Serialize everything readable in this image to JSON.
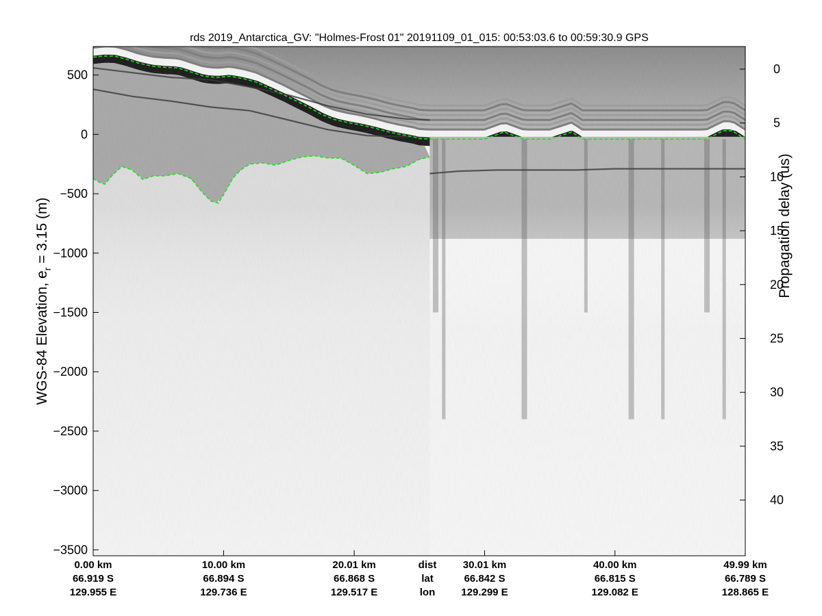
{
  "chart_data": {
    "type": "heatmap",
    "title": "rds 2019_Antarctica_GV: \"Holmes-Frost 01\"  20191109_01_015: 00:53:03.6 to 00:59:30.9 GPS",
    "ylabel_left_main": "WGS-84 Elevation, e",
    "ylabel_left_sub": "r",
    "ylabel_left_tail": " = 3.15 (m)",
    "ylabel_right": "Propagation delay (us)",
    "ylim_left": [
      -3550,
      740
    ],
    "left_ticks": [
      500,
      0,
      -500,
      -1000,
      -1500,
      -2000,
      -2500,
      -3000,
      -3500
    ],
    "left_tick_labels": [
      "500",
      "0",
      "−500",
      "−1000",
      "−1500",
      "−2000",
      "−2500",
      "−3000",
      "−3500"
    ],
    "right_ticks": [
      0,
      5,
      10,
      15,
      20,
      25,
      30,
      35,
      40
    ],
    "right_tick_labels": [
      "0",
      "5",
      "10",
      "15",
      "20",
      "25",
      "30",
      "35",
      "40"
    ],
    "xlim_km": [
      0,
      49.99
    ],
    "x_columns": [
      {
        "km": 0.0,
        "dist": "0.00 km",
        "lat": "66.919 S",
        "lon": "129.955 E"
      },
      {
        "km": 10.0,
        "dist": "10.00 km",
        "lat": "66.894 S",
        "lon": "129.736 E"
      },
      {
        "km": 20.01,
        "dist": "20.01 km",
        "lat": "66.868 S",
        "lon": "129.517 E"
      },
      {
        "km": 30.01,
        "dist": "30.01 km",
        "lat": "66.842 S",
        "lon": "129.299 E"
      },
      {
        "km": 40.0,
        "dist": "40.00 km",
        "lat": "66.815 S",
        "lon": "129.082 E"
      },
      {
        "km": 49.99,
        "dist": "49.99 km",
        "lat": "66.789 S",
        "lon": "128.865 E"
      }
    ],
    "row_labels": {
      "dist": "dist",
      "lat": "lat",
      "lon": "lon"
    },
    "surface_pick": {
      "km": [
        0,
        0.8,
        1.6,
        2.5,
        3.5,
        4.5,
        5.5,
        6.5,
        7.5,
        8.5,
        9.5,
        10.5,
        11.5,
        12.5,
        13.5,
        14.5,
        15.5,
        16.5,
        17.5,
        18.5,
        19.5,
        20.5,
        21.5,
        22.5,
        23.5,
        24.5,
        25.0,
        25.8,
        26.5,
        28,
        30,
        31.5,
        33,
        35,
        36.7,
        37.5,
        39,
        41,
        43,
        45,
        47,
        48.3,
        49,
        49.99
      ],
      "elev": [
        650,
        660,
        660,
        635,
        600,
        575,
        565,
        560,
        525,
        490,
        480,
        490,
        470,
        440,
        390,
        340,
        285,
        230,
        170,
        125,
        100,
        80,
        55,
        25,
        0,
        -20,
        -35,
        -40,
        -40,
        -40,
        -40,
        20,
        -40,
        -40,
        20,
        -40,
        -40,
        -40,
        -40,
        -40,
        -40,
        30,
        30,
        -40
      ]
    },
    "bed_pick": {
      "km": [
        0,
        0.4,
        0.9,
        1.5,
        2.2,
        3.0,
        3.8,
        4.6,
        5.5,
        6.5,
        7.5,
        8.3,
        9.0,
        9.6,
        10.2,
        10.7,
        11.3,
        12.0,
        13.0,
        14.0,
        15.0,
        16.0,
        17.0,
        18.0,
        19.0,
        20.0,
        21.0,
        22.0,
        23.0,
        24.0,
        25.0,
        25.8
      ],
      "elev": [
        -370,
        -400,
        -420,
        -340,
        -270,
        -300,
        -380,
        -350,
        -350,
        -330,
        -370,
        -480,
        -560,
        -580,
        -470,
        -370,
        -300,
        -250,
        -240,
        -260,
        -220,
        -190,
        -180,
        -200,
        -200,
        -260,
        -330,
        -320,
        -290,
        -270,
        -210,
        -190
      ]
    },
    "internal_layers": [
      {
        "km": [
          0,
          3,
          6,
          9,
          12,
          15,
          18,
          21,
          24,
          25.8
        ],
        "elev": [
          560,
          520,
          480,
          460,
          400,
          330,
          240,
          170,
          130,
          120
        ]
      },
      {
        "km": [
          0,
          3,
          6,
          9,
          12,
          15,
          18,
          21,
          24,
          25.8
        ],
        "elev": [
          380,
          320,
          280,
          230,
          200,
          120,
          40,
          -10,
          -20,
          -30
        ]
      },
      {
        "km": [
          25.8,
          28,
          31,
          34,
          37,
          40,
          43,
          46,
          49,
          49.99
        ],
        "elev": [
          -330,
          -310,
          -300,
          -300,
          -300,
          -290,
          -290,
          -290,
          -290,
          -290
        ]
      }
    ],
    "colormap": "gray",
    "pick_color": "#22dd22",
    "grid": false
  }
}
